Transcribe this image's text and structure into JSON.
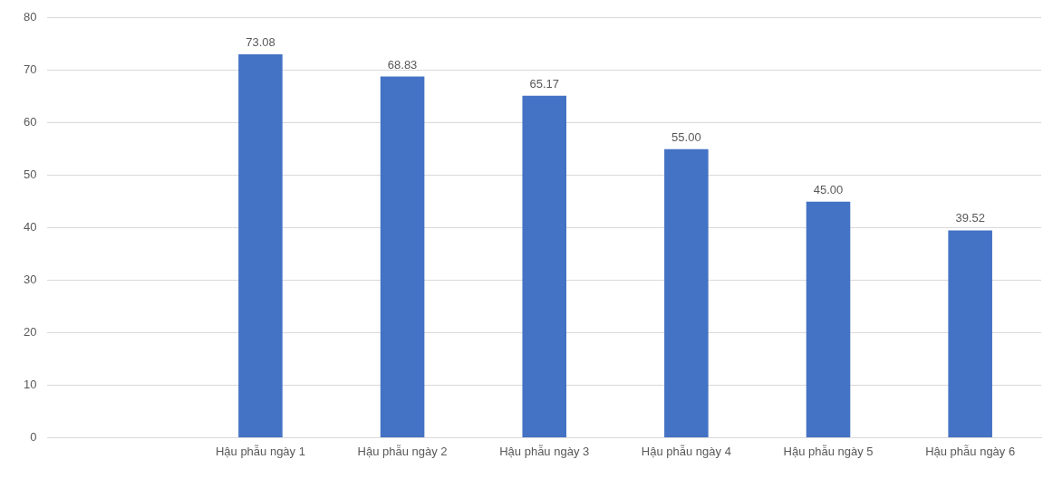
{
  "chart_data": {
    "type": "bar",
    "categories": [
      null,
      "Hậu phẫu ngày 1",
      "Hậu phẫu ngày 2",
      "Hậu phẫu ngày 3",
      "Hậu phẫu ngày 4",
      "Hậu phẫu ngày 5",
      "Hậu phẫu ngày 6"
    ],
    "values": [
      null,
      73.08,
      68.83,
      65.17,
      55,
      45,
      39.52
    ],
    "value_labels": [
      null,
      "73.08",
      "68.83",
      "65.17",
      "55.00",
      "45.00",
      "39.52"
    ],
    "color": "#4472c4",
    "ylim": [
      0,
      80
    ],
    "yticks": [
      0,
      10,
      20,
      30,
      40,
      50,
      60,
      70,
      80
    ],
    "grid": "y",
    "legend": false
  }
}
